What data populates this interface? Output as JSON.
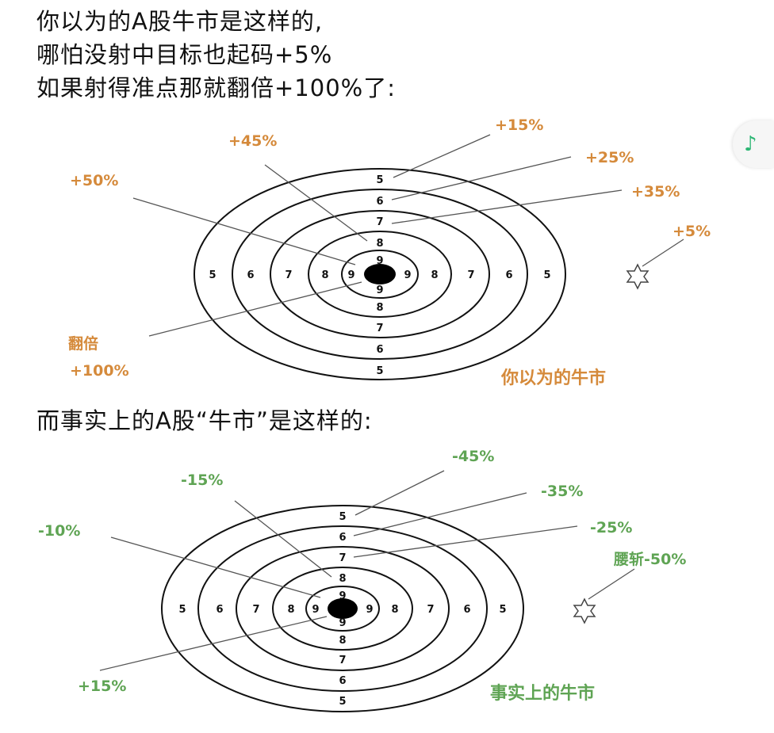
{
  "heading": {
    "line1": "你以为的A股牛市是这样的,",
    "line2": "哪怕没射中目标也起码+5%",
    "line3": "如果射得准点那就翻倍+100%了:",
    "line4": "而事实上的A股“牛市”是这样的:"
  },
  "colors": {
    "orange": "#d58a3b",
    "green": "#5fa454",
    "ink": "#111111"
  },
  "music_icon": "♪",
  "target1": {
    "caption": "你以为的牛市",
    "labels": {
      "r5": "+15%",
      "r6": "+25%",
      "r7": "+35%",
      "r8": "+45%",
      "r9": "+50%",
      "miss": "+5%",
      "center_a": "翻倍",
      "center_b": "+100%"
    }
  },
  "target2": {
    "caption": "事实上的牛市",
    "labels": {
      "r5": "-45%",
      "r6": "-35%",
      "r7": "-25%",
      "r8": "-15%",
      "r9": "-10%",
      "miss": "腰斩-50%",
      "center": "+15%"
    }
  },
  "ring_numbers": {
    "n5": "5",
    "n6": "6",
    "n7": "7",
    "n8": "8",
    "n9": "9"
  }
}
